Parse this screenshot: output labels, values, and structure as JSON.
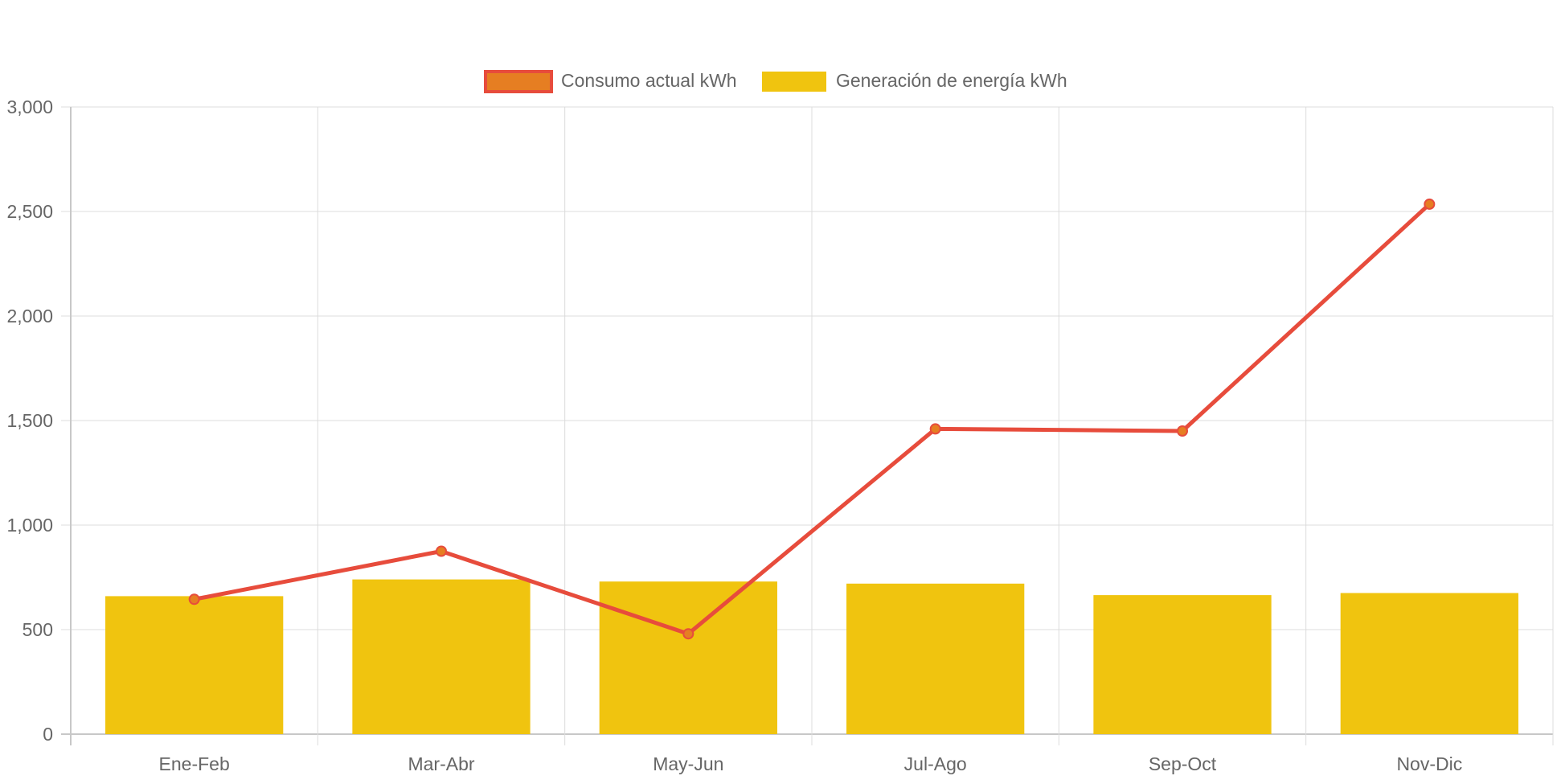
{
  "colors": {
    "bar_fill": "#f0c40f",
    "line_stroke": "#e74c3c",
    "point_fill": "#e67e22",
    "grid": "#dcdcdc",
    "axis": "#c8c8c8",
    "text": "#666666"
  },
  "chart_data": {
    "type": "bar",
    "categories": [
      "Ene-Feb",
      "Mar-Abr",
      "May-Jun",
      "Jul-Ago",
      "Sep-Oct",
      "Nov-Dic"
    ],
    "series": [
      {
        "name": "Consumo actual kWh",
        "type": "line",
        "color": "#e74c3c",
        "point_color": "#e67e22",
        "values": [
          645,
          875,
          480,
          1460,
          1450,
          2535
        ]
      },
      {
        "name": "Generación de energía kWh",
        "type": "bar",
        "color": "#f0c40f",
        "values": [
          660,
          740,
          730,
          720,
          665,
          675
        ]
      }
    ],
    "ylim": [
      0,
      3000
    ],
    "yticks": [
      0,
      500,
      1000,
      1500,
      2000,
      2500,
      3000
    ],
    "ytick_labels": [
      "0",
      "500",
      "1,000",
      "1,500",
      "2,000",
      "2,500",
      "3,000"
    ],
    "grid": true,
    "legend_position": "top-center"
  }
}
